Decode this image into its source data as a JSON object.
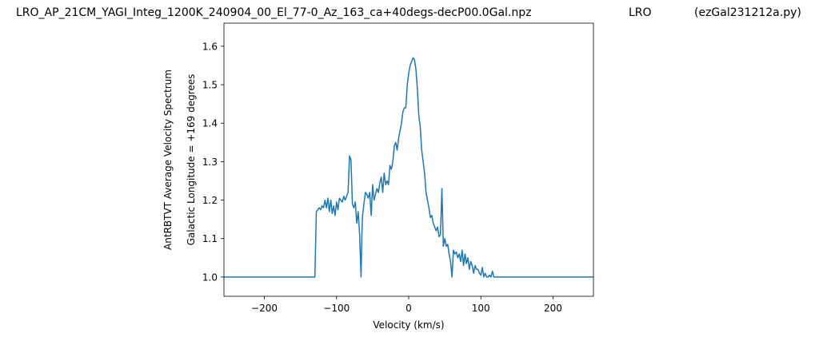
{
  "chart_data": {
    "type": "line",
    "title_main": "LRO_AP_21CM_YAGI_Integ_1200K_240904_00_El_77-0_Az_163_ca+40degs-decP00.0Gal.npz",
    "title_mid": "LRO",
    "title_right": "(ezGal231212a.py)",
    "xlabel": "Velocity (km/s)",
    "ylabel_line1": "AntRBTVT Average Velocity Spectrum",
    "ylabel_line2": "Galactic Longitude = +169 degrees",
    "xlim": [
      -256,
      256
    ],
    "ylim": [
      0.95,
      1.66
    ],
    "xticks": [
      -200,
      -100,
      0,
      100,
      200
    ],
    "xtick_labels": [
      "−200",
      "−100",
      "0",
      "100",
      "200"
    ],
    "yticks": [
      1.0,
      1.1,
      1.2,
      1.3,
      1.4,
      1.5,
      1.6
    ],
    "ytick_labels": [
      "1.0",
      "1.1",
      "1.2",
      "1.3",
      "1.4",
      "1.5",
      "1.6"
    ],
    "grid": false,
    "line_color": "#1f77b4",
    "series": [
      {
        "x": [
          -256,
          -130,
          -128,
          -126,
          -124,
          -122,
          -120,
          -118,
          -116,
          -114,
          -112,
          -110,
          -108,
          -106,
          -104,
          -102,
          -100,
          -98,
          -96,
          -94,
          -92,
          -90,
          -88,
          -86,
          -84,
          -82,
          -80,
          -78,
          -76,
          -74,
          -72,
          -70,
          -68,
          -66,
          -65,
          -64,
          -62,
          -60,
          -58,
          -56,
          -54,
          -52,
          -50,
          -48,
          -46,
          -44,
          -42,
          -40,
          -38,
          -36,
          -34,
          -32,
          -30,
          -28,
          -26,
          -24,
          -22,
          -20,
          -18,
          -16,
          -14,
          -12,
          -10,
          -8,
          -6,
          -4,
          -2,
          0,
          2,
          4,
          6,
          8,
          10,
          12,
          14,
          16,
          18,
          20,
          22,
          24,
          26,
          28,
          30,
          32,
          34,
          36,
          38,
          40,
          42,
          44,
          46,
          48,
          50,
          52,
          54,
          56,
          58,
          60,
          62,
          64,
          66,
          68,
          70,
          72,
          74,
          76,
          78,
          80,
          82,
          84,
          86,
          88,
          90,
          92,
          94,
          96,
          98,
          100,
          102,
          104,
          106,
          108,
          110,
          112,
          114,
          116,
          118,
          256
        ],
        "y": [
          1.0,
          1.0,
          1.17,
          1.175,
          1.18,
          1.175,
          1.185,
          1.18,
          1.2,
          1.18,
          1.205,
          1.17,
          1.2,
          1.165,
          1.185,
          1.16,
          1.195,
          1.175,
          1.205,
          1.2,
          1.195,
          1.21,
          1.2,
          1.21,
          1.22,
          1.315,
          1.305,
          1.19,
          1.18,
          1.195,
          1.14,
          1.17,
          1.11,
          1.0,
          1.1,
          1.16,
          1.19,
          1.22,
          1.215,
          1.205,
          1.22,
          1.16,
          1.24,
          1.2,
          1.215,
          1.23,
          1.22,
          1.245,
          1.26,
          1.22,
          1.27,
          1.24,
          1.25,
          1.24,
          1.29,
          1.28,
          1.3,
          1.34,
          1.35,
          1.33,
          1.36,
          1.38,
          1.4,
          1.43,
          1.44,
          1.44,
          1.5,
          1.53,
          1.55,
          1.56,
          1.57,
          1.565,
          1.54,
          1.49,
          1.42,
          1.39,
          1.33,
          1.3,
          1.27,
          1.22,
          1.2,
          1.18,
          1.155,
          1.16,
          1.14,
          1.13,
          1.12,
          1.13,
          1.105,
          1.11,
          1.23,
          1.08,
          1.1,
          1.08,
          1.085,
          1.06,
          1.04,
          1.0,
          1.07,
          1.06,
          1.065,
          1.05,
          1.06,
          1.04,
          1.07,
          1.03,
          1.06,
          1.035,
          1.05,
          1.02,
          1.04,
          1.03,
          1.01,
          1.03,
          1.02,
          1.02,
          1.01,
          1.005,
          1.025,
          1.0,
          1.01,
          1.0,
          1.0,
          1.005,
          1.0,
          1.015,
          1.0,
          1.0
        ]
      }
    ]
  }
}
